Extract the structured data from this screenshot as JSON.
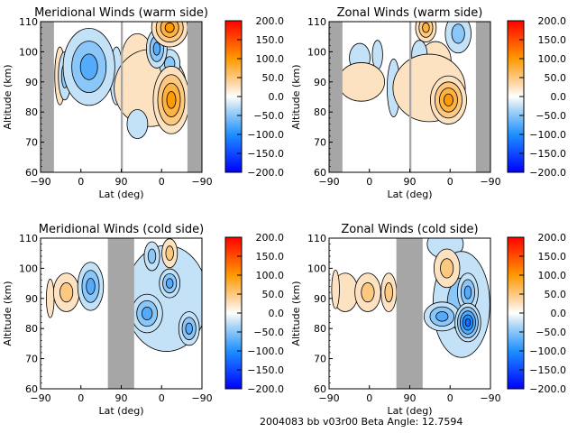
{
  "footer": {
    "text": "2004083 bb v03r00   Beta Angle: 12.7594"
  },
  "chart_data": [
    {
      "type": "heatmap",
      "title": "Meridional Winds (warm side)",
      "xlabel": "Lat (deg)",
      "ylabel": "Altitude (km)",
      "xticks": [
        "-90",
        "0",
        "90",
        "0",
        "-90"
      ],
      "yticks": [
        "60",
        "70",
        "80",
        "90",
        "100",
        "110"
      ],
      "ylim": [
        60,
        110
      ],
      "xdomain": "two hemispheric passes: -90 → 90 then 90 → -90",
      "gaps": [
        [
          -90,
          -72
        ],
        [
          90,
          92
        ],
        [
          -62,
          -90
        ]
      ],
      "gap_x_ranges_pos": [
        [
          0,
          0.083
        ],
        [
          0.497,
          0.51
        ],
        [
          0.91,
          1.0
        ]
      ],
      "colorbar": {
        "min": -200,
        "max": 200,
        "ticks": [
          "200.0",
          "150.0",
          "100.0",
          "50.0",
          "0.0",
          "-50.0",
          "-100.0",
          "-150.0",
          "-200.0"
        ]
      },
      "features": [
        {
          "pos": 0.3,
          "alt": 95,
          "value": -90,
          "sx": 0.1,
          "sy": 8
        },
        {
          "pos": 0.15,
          "alt": 92,
          "value": -60,
          "sx": 0.025,
          "sy": 5
        },
        {
          "pos": 0.12,
          "alt": 92,
          "value": 30,
          "sx": 0.02,
          "sy": 6
        },
        {
          "pos": 0.47,
          "alt": 92,
          "value": -30,
          "sx": 0.025,
          "sy": 6
        },
        {
          "pos": 0.81,
          "alt": 84,
          "value": 110,
          "sx": 0.07,
          "sy": 7
        },
        {
          "pos": 0.68,
          "alt": 88,
          "value": 40,
          "sx": 0.14,
          "sy": 8
        },
        {
          "pos": 0.8,
          "alt": 108,
          "value": 120,
          "sx": 0.07,
          "sy": 4
        },
        {
          "pos": 0.72,
          "alt": 101,
          "value": -80,
          "sx": 0.04,
          "sy": 4
        },
        {
          "pos": 0.8,
          "alt": 96,
          "value": -60,
          "sx": 0.04,
          "sy": 3
        },
        {
          "pos": 0.6,
          "alt": 76,
          "value": -40,
          "sx": 0.04,
          "sy": 3
        },
        {
          "pos": 0.6,
          "alt": 98,
          "value": 20,
          "sx": 0.06,
          "sy": 5
        }
      ]
    },
    {
      "type": "heatmap",
      "title": "Zonal Winds (warm side)",
      "xlabel": "Lat (deg)",
      "ylabel": "Altitude (km)",
      "xticks": [
        "-90",
        "0",
        "90",
        "0",
        "-90"
      ],
      "yticks": [
        "60",
        "70",
        "80",
        "90",
        "100",
        "110"
      ],
      "ylim": [
        60,
        110
      ],
      "gap_x_ranges_pos": [
        [
          0,
          0.083
        ],
        [
          0.497,
          0.51
        ],
        [
          0.91,
          1.0
        ]
      ],
      "colorbar": {
        "min": -200,
        "max": 200,
        "ticks": [
          "200.0",
          "150.0",
          "100.0",
          "50.0",
          "0.0",
          "-50.0",
          "-100.0",
          "-150.0",
          "-200.0"
        ]
      },
      "features": [
        {
          "pos": 0.19,
          "alt": 98,
          "value": -25,
          "sx": 0.04,
          "sy": 3
        },
        {
          "pos": 0.3,
          "alt": 99,
          "value": -25,
          "sx": 0.02,
          "sy": 3
        },
        {
          "pos": 0.2,
          "alt": 90,
          "value": 25,
          "sx": 0.09,
          "sy": 4
        },
        {
          "pos": 0.4,
          "alt": 88,
          "value": -25,
          "sx": 0.025,
          "sy": 6
        },
        {
          "pos": 0.74,
          "alt": 84,
          "value": 120,
          "sx": 0.07,
          "sy": 5
        },
        {
          "pos": 0.62,
          "alt": 88,
          "value": 35,
          "sx": 0.14,
          "sy": 7
        },
        {
          "pos": 0.6,
          "alt": 108,
          "value": 90,
          "sx": 0.04,
          "sy": 3
        },
        {
          "pos": 0.8,
          "alt": 106,
          "value": -70,
          "sx": 0.05,
          "sy": 4
        },
        {
          "pos": 0.66,
          "alt": 97,
          "value": 30,
          "sx": 0.06,
          "sy": 4
        },
        {
          "pos": 0.56,
          "alt": 99,
          "value": -30,
          "sx": 0.03,
          "sy": 3
        }
      ]
    },
    {
      "type": "heatmap",
      "title": "Meridional Winds (cold side)",
      "xlabel": "Lat (deg)",
      "ylabel": "Altitude (km)",
      "xticks": [
        "-90",
        "0",
        "90",
        "0",
        "-90"
      ],
      "yticks": [
        "60",
        "70",
        "80",
        "90",
        "100",
        "110"
      ],
      "ylim": [
        60,
        110
      ],
      "gap_x_ranges_pos": [
        [
          0.417,
          0.58
        ]
      ],
      "colorbar": {
        "min": -200,
        "max": 200,
        "ticks": [
          "200.0",
          "150.0",
          "100.0",
          "50.0",
          "0.0",
          "-50.0",
          "-100.0",
          "-150.0",
          "-200.0"
        ]
      },
      "features": [
        {
          "pos": 0.16,
          "alt": 92,
          "value": 70,
          "sx": 0.05,
          "sy": 4
        },
        {
          "pos": 0.31,
          "alt": 94,
          "value": -90,
          "sx": 0.05,
          "sy": 5
        },
        {
          "pos": 0.06,
          "alt": 90,
          "value": 20,
          "sx": 0.015,
          "sy": 4
        },
        {
          "pos": 0.66,
          "alt": 85,
          "value": -90,
          "sx": 0.06,
          "sy": 4
        },
        {
          "pos": 0.8,
          "alt": 95,
          "value": -90,
          "sx": 0.04,
          "sy": 3
        },
        {
          "pos": 0.67,
          "alt": 96,
          "value": 30,
          "sx": 0.03,
          "sy": 3
        },
        {
          "pos": 0.8,
          "alt": 105,
          "value": 60,
          "sx": 0.03,
          "sy": 3
        },
        {
          "pos": 0.92,
          "alt": 80,
          "value": -90,
          "sx": 0.04,
          "sy": 3.5
        },
        {
          "pos": 0.69,
          "alt": 104,
          "value": -60,
          "sx": 0.03,
          "sy": 3
        },
        {
          "pos": 0.8,
          "alt": 88,
          "value": 25,
          "sx": 0.02,
          "sy": 2
        },
        {
          "pos": 0.78,
          "alt": 90,
          "value": -35,
          "sx": 0.16,
          "sy": 11
        }
      ]
    },
    {
      "type": "heatmap",
      "title": "Zonal Winds (cold side)",
      "xlabel": "Lat (deg)",
      "ylabel": "Altitude (km)",
      "xticks": [
        "-90",
        "0",
        "90",
        "0",
        "-90"
      ],
      "yticks": [
        "60",
        "70",
        "80",
        "90",
        "100",
        "110"
      ],
      "ylim": [
        60,
        110
      ],
      "gap_x_ranges_pos": [
        [
          0.417,
          0.58
        ]
      ],
      "colorbar": {
        "min": -200,
        "max": 200,
        "ticks": [
          "200.0",
          "150.0",
          "100.0",
          "50.0",
          "0.0",
          "-50.0",
          "-100.0",
          "-150.0",
          "-200.0"
        ]
      },
      "features": [
        {
          "pos": 0.24,
          "alt": 92,
          "value": 70,
          "sx": 0.05,
          "sy": 4
        },
        {
          "pos": 0.04,
          "alt": 93,
          "value": 40,
          "sx": 0.015,
          "sy": 4
        },
        {
          "pos": 0.37,
          "alt": 92,
          "value": 50,
          "sx": 0.03,
          "sy": 4
        },
        {
          "pos": 0.1,
          "alt": 92,
          "value": 20,
          "sx": 0.05,
          "sy": 4
        },
        {
          "pos": 0.73,
          "alt": 100,
          "value": 60,
          "sx": 0.05,
          "sy": 4
        },
        {
          "pos": 0.86,
          "alt": 82,
          "value": -130,
          "sx": 0.05,
          "sy": 4
        },
        {
          "pos": 0.86,
          "alt": 92,
          "value": -90,
          "sx": 0.04,
          "sy": 4
        },
        {
          "pos": 0.7,
          "alt": 84,
          "value": -80,
          "sx": 0.07,
          "sy": 3
        },
        {
          "pos": 0.82,
          "alt": 88,
          "value": -50,
          "sx": 0.11,
          "sy": 11
        },
        {
          "pos": 0.72,
          "alt": 108,
          "value": -40,
          "sx": 0.07,
          "sy": 3
        }
      ]
    }
  ]
}
